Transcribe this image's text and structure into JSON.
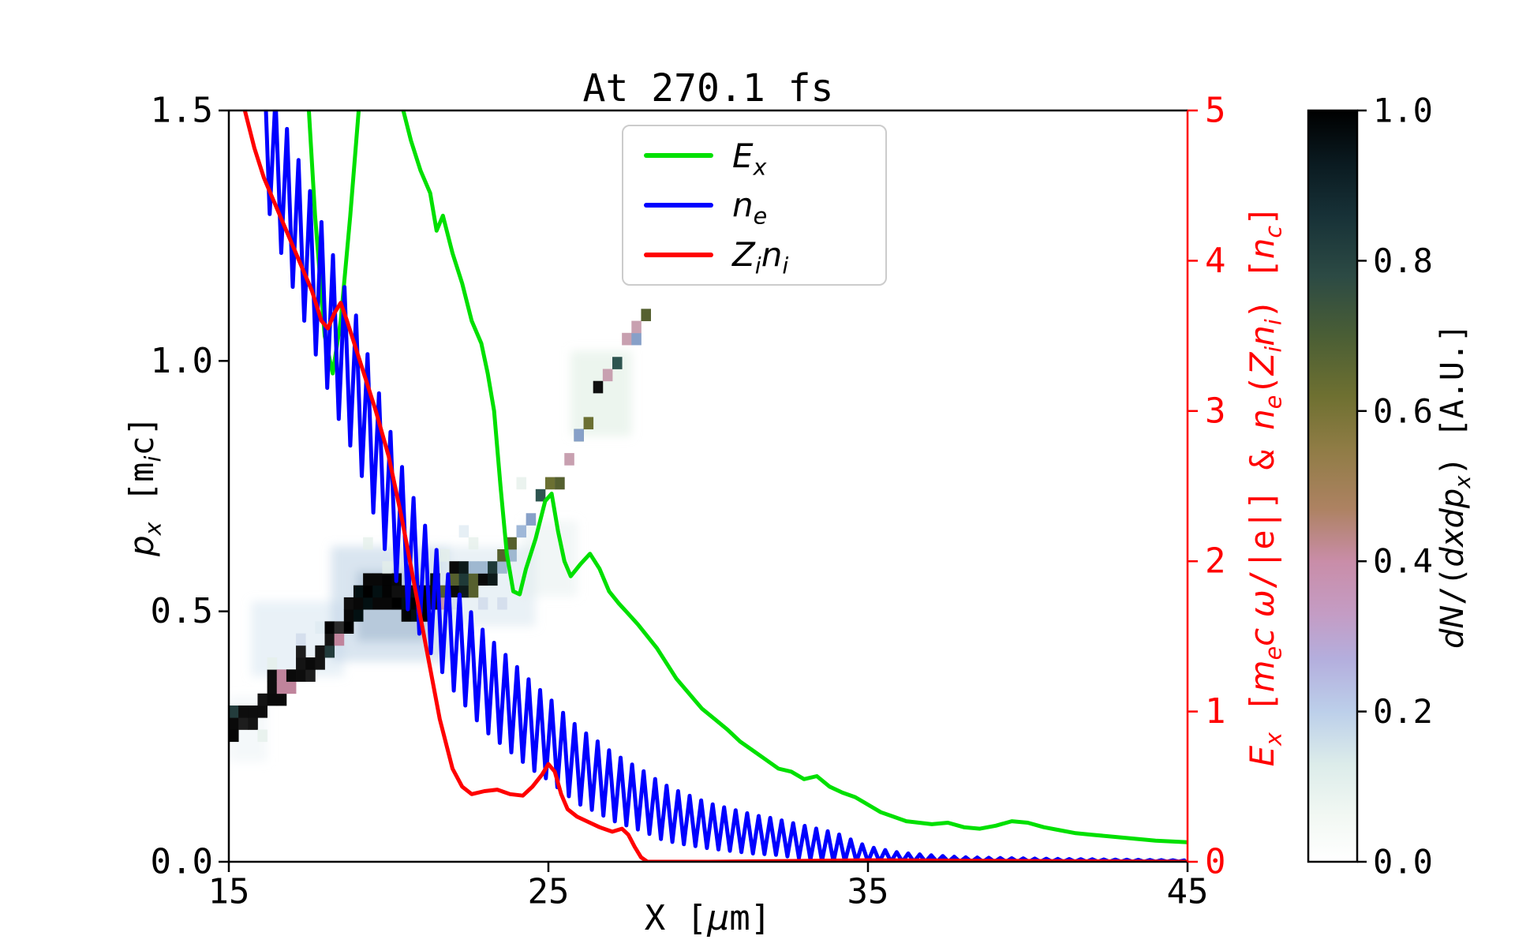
{
  "figure": {
    "title": "At 270.1 fs",
    "xlabel_html": "X [<i>μ</i>m]",
    "ylabel_left_html": "<i>p<sub>x</sub></i> [m<sub><i>i</i></sub>c]",
    "ylabel_right_html": "<i>E<sub>x</sub></i> [<i>m<sub>e</sub>c ω</i>/|e|] &amp; <i>n<sub>e</sub></i>(<i>Z<sub>i</sub>n<sub>i</sub></i>) [<i>n<sub>c</sub></i>]",
    "colorbar_label_html": "<i>dN</i>/(<i>dxdp<sub>x</sub></i>) [A.U.]"
  },
  "legend": {
    "items": [
      {
        "label_html": "<i>E<sub>x</sub></i>",
        "color": "#00e000"
      },
      {
        "label_html": "<i>n<sub>e</sub></i>",
        "color": "#0000ff"
      },
      {
        "label_html": "<i>Z<sub>i</sub>n<sub>i</sub></i>",
        "color": "#ff0000"
      }
    ]
  },
  "axes": {
    "right_axis_color": "#ff0000",
    "spine_color": "#000000",
    "x_ticks": [
      {
        "v": 15,
        "label": "15"
      },
      {
        "v": 25,
        "label": "25"
      },
      {
        "v": 35,
        "label": "35"
      },
      {
        "v": 45,
        "label": "45"
      }
    ],
    "yleft_ticks": [
      {
        "v": 0.0,
        "label": "0.0"
      },
      {
        "v": 0.5,
        "label": "0.5"
      },
      {
        "v": 1.0,
        "label": "1.0"
      },
      {
        "v": 1.5,
        "label": "1.5"
      }
    ],
    "yright_ticks": [
      {
        "v": 0,
        "label": "0"
      },
      {
        "v": 1,
        "label": "1"
      },
      {
        "v": 2,
        "label": "2"
      },
      {
        "v": 3,
        "label": "3"
      },
      {
        "v": 4,
        "label": "4"
      },
      {
        "v": 5,
        "label": "5"
      }
    ],
    "colorbar_ticks": [
      {
        "v": 0.0,
        "label": "0.0"
      },
      {
        "v": 0.2,
        "label": "0.2"
      },
      {
        "v": 0.4,
        "label": "0.4"
      },
      {
        "v": 0.6,
        "label": "0.6"
      },
      {
        "v": 0.8,
        "label": "0.8"
      },
      {
        "v": 1.0,
        "label": "1.0"
      }
    ]
  },
  "chart_data": {
    "type": "line",
    "title": "At 270.1 fs",
    "xlabel": "X [μm]",
    "ylabel_left": "p_x [m_i c]",
    "ylabel_right": "E_x [m_e c ω/|e|] & n_e(Z_i n_i) [n_c]",
    "xlim": [
      15,
      45
    ],
    "ylim_left": [
      0,
      1.5
    ],
    "ylim_right": [
      0,
      5
    ],
    "legend_position": "upper center",
    "grid": false,
    "series": [
      {
        "name": "E_x",
        "axis": "right",
        "color": "#00e000",
        "width": 5,
        "points": [
          [
            17.45,
            5.2
          ],
          [
            17.7,
            4.3
          ],
          [
            18.0,
            3.5
          ],
          [
            18.25,
            3.25
          ],
          [
            18.5,
            3.6
          ],
          [
            18.8,
            4.3
          ],
          [
            19.1,
            5.1
          ],
          [
            19.3,
            5.5
          ],
          [
            20.1,
            5.5
          ],
          [
            20.4,
            5.05
          ],
          [
            20.7,
            4.8
          ],
          [
            21.0,
            4.6
          ],
          [
            21.3,
            4.45
          ],
          [
            21.5,
            4.2
          ],
          [
            21.7,
            4.3
          ],
          [
            22.0,
            4.05
          ],
          [
            22.3,
            3.85
          ],
          [
            22.6,
            3.6
          ],
          [
            22.9,
            3.45
          ],
          [
            23.1,
            3.25
          ],
          [
            23.3,
            3.0
          ],
          [
            23.5,
            2.5
          ],
          [
            23.7,
            2.05
          ],
          [
            23.9,
            1.8
          ],
          [
            24.1,
            1.78
          ],
          [
            24.3,
            1.95
          ],
          [
            24.6,
            2.15
          ],
          [
            24.9,
            2.4
          ],
          [
            25.1,
            2.45
          ],
          [
            25.3,
            2.2
          ],
          [
            25.5,
            2.0
          ],
          [
            25.7,
            1.9
          ],
          [
            26.0,
            1.98
          ],
          [
            26.3,
            2.05
          ],
          [
            26.6,
            1.95
          ],
          [
            26.9,
            1.8
          ],
          [
            27.2,
            1.72
          ],
          [
            27.5,
            1.65
          ],
          [
            27.8,
            1.58
          ],
          [
            28.1,
            1.5
          ],
          [
            28.4,
            1.42
          ],
          [
            28.7,
            1.32
          ],
          [
            29.0,
            1.22
          ],
          [
            29.4,
            1.12
          ],
          [
            29.8,
            1.02
          ],
          [
            30.2,
            0.95
          ],
          [
            30.6,
            0.88
          ],
          [
            31.0,
            0.8
          ],
          [
            31.4,
            0.74
          ],
          [
            31.8,
            0.68
          ],
          [
            32.2,
            0.62
          ],
          [
            32.6,
            0.6
          ],
          [
            33.0,
            0.55
          ],
          [
            33.4,
            0.57
          ],
          [
            33.8,
            0.5
          ],
          [
            34.2,
            0.46
          ],
          [
            34.6,
            0.43
          ],
          [
            35.0,
            0.38
          ],
          [
            35.4,
            0.33
          ],
          [
            35.8,
            0.3
          ],
          [
            36.2,
            0.27
          ],
          [
            36.6,
            0.26
          ],
          [
            37.0,
            0.25
          ],
          [
            37.5,
            0.26
          ],
          [
            38.0,
            0.23
          ],
          [
            38.5,
            0.22
          ],
          [
            39.0,
            0.24
          ],
          [
            39.5,
            0.27
          ],
          [
            40.0,
            0.26
          ],
          [
            40.5,
            0.23
          ],
          [
            41.0,
            0.21
          ],
          [
            41.5,
            0.19
          ],
          [
            42.0,
            0.18
          ],
          [
            42.5,
            0.17
          ],
          [
            43.0,
            0.16
          ],
          [
            43.5,
            0.15
          ],
          [
            44.0,
            0.14
          ],
          [
            44.5,
            0.135
          ],
          [
            45.0,
            0.13
          ]
        ]
      },
      {
        "name": "n_e",
        "axis": "right",
        "color": "#0000ff",
        "width": 5,
        "synthesis": "zigzag",
        "x_start": 16.1,
        "x_end": 45,
        "period": 0.36,
        "center": [
          [
            16.1,
            4.9
          ],
          [
            16.5,
            4.6
          ],
          [
            17.0,
            4.3
          ],
          [
            17.5,
            4.0
          ],
          [
            18.0,
            3.7
          ],
          [
            18.5,
            3.4
          ],
          [
            19.0,
            3.15
          ],
          [
            19.5,
            2.8
          ],
          [
            20.0,
            2.45
          ],
          [
            20.5,
            2.15
          ],
          [
            21.0,
            1.9
          ],
          [
            21.5,
            1.7
          ],
          [
            22.0,
            1.5
          ],
          [
            22.5,
            1.35
          ],
          [
            23.0,
            1.2
          ],
          [
            23.5,
            1.1
          ],
          [
            24.0,
            1.0
          ],
          [
            24.5,
            0.9
          ],
          [
            25.0,
            0.82
          ],
          [
            25.5,
            0.72
          ],
          [
            26.0,
            0.63
          ],
          [
            26.5,
            0.57
          ],
          [
            27.0,
            0.5
          ],
          [
            27.5,
            0.45
          ],
          [
            28.0,
            0.4
          ],
          [
            28.5,
            0.34
          ],
          [
            29.0,
            0.3
          ],
          [
            29.5,
            0.27
          ],
          [
            30.0,
            0.24
          ],
          [
            30.5,
            0.22
          ],
          [
            31.0,
            0.2
          ],
          [
            31.5,
            0.18
          ],
          [
            32.0,
            0.17
          ],
          [
            32.5,
            0.15
          ],
          [
            33.0,
            0.13
          ],
          [
            33.5,
            0.11
          ],
          [
            34.0,
            0.09
          ],
          [
            34.5,
            0.07
          ],
          [
            35.0,
            0.05
          ],
          [
            35.5,
            0.04
          ],
          [
            36.0,
            0.03
          ],
          [
            37.0,
            0.02
          ],
          [
            38.0,
            0.015
          ],
          [
            40.0,
            0.01
          ],
          [
            42.0,
            0.008
          ],
          [
            45.0,
            0.005
          ]
        ],
        "amplitude": [
          [
            16.1,
            0.45
          ],
          [
            18.0,
            0.5
          ],
          [
            20.0,
            0.45
          ],
          [
            22.0,
            0.35
          ],
          [
            24.0,
            0.3
          ],
          [
            26.0,
            0.25
          ],
          [
            28.0,
            0.2
          ],
          [
            30.0,
            0.15
          ],
          [
            32.0,
            0.12
          ],
          [
            34.0,
            0.1
          ],
          [
            35.0,
            0.05
          ],
          [
            36.0,
            0.03
          ],
          [
            38.0,
            0.015
          ],
          [
            45.0,
            0.004
          ]
        ]
      },
      {
        "name": "Z_i n_i",
        "axis": "right",
        "color": "#ff0000",
        "width": 5,
        "points": [
          [
            15.2,
            5.4
          ],
          [
            15.5,
            5.0
          ],
          [
            15.8,
            4.75
          ],
          [
            16.1,
            4.55
          ],
          [
            16.4,
            4.4
          ],
          [
            16.8,
            4.2
          ],
          [
            17.2,
            4.0
          ],
          [
            17.6,
            3.8
          ],
          [
            17.9,
            3.6
          ],
          [
            18.1,
            3.55
          ],
          [
            18.3,
            3.65
          ],
          [
            18.5,
            3.72
          ],
          [
            18.7,
            3.6
          ],
          [
            19.0,
            3.4
          ],
          [
            19.3,
            3.2
          ],
          [
            19.6,
            3.0
          ],
          [
            20.0,
            2.7
          ],
          [
            20.4,
            2.3
          ],
          [
            20.8,
            1.85
          ],
          [
            21.2,
            1.4
          ],
          [
            21.6,
            0.95
          ],
          [
            22.0,
            0.62
          ],
          [
            22.3,
            0.5
          ],
          [
            22.6,
            0.45
          ],
          [
            23.0,
            0.47
          ],
          [
            23.4,
            0.48
          ],
          [
            23.8,
            0.45
          ],
          [
            24.2,
            0.44
          ],
          [
            24.5,
            0.5
          ],
          [
            24.8,
            0.58
          ],
          [
            25.0,
            0.65
          ],
          [
            25.2,
            0.6
          ],
          [
            25.4,
            0.45
          ],
          [
            25.6,
            0.35
          ],
          [
            25.9,
            0.3
          ],
          [
            26.2,
            0.27
          ],
          [
            26.6,
            0.23
          ],
          [
            27.0,
            0.2
          ],
          [
            27.3,
            0.22
          ],
          [
            27.5,
            0.18
          ],
          [
            27.7,
            0.1
          ],
          [
            27.9,
            0.03
          ],
          [
            28.1,
            0.0
          ],
          [
            30.0,
            0.0
          ],
          [
            35.0,
            0.01
          ],
          [
            40.0,
            0.005
          ],
          [
            45.0,
            0.0
          ]
        ]
      }
    ],
    "heatmap": {
      "description": "dN/(dx dp_x) electron phase-space density band, left axis units",
      "x0": 15.0,
      "x1": 28.8,
      "cell_w": 0.3,
      "cell_h": 0.024,
      "seed": 7,
      "band": [
        [
          15,
          0.26
        ],
        [
          15.5,
          0.28
        ],
        [
          16,
          0.31
        ],
        [
          16.5,
          0.335
        ],
        [
          17,
          0.36
        ],
        [
          17.5,
          0.39
        ],
        [
          18,
          0.43
        ],
        [
          18.5,
          0.46
        ],
        [
          19,
          0.5
        ],
        [
          19.5,
          0.53
        ],
        [
          20,
          0.53
        ],
        [
          20.5,
          0.51
        ],
        [
          21,
          0.5
        ],
        [
          21.5,
          0.52
        ],
        [
          22,
          0.54
        ],
        [
          22.5,
          0.55
        ],
        [
          23,
          0.57
        ],
        [
          23.5,
          0.6
        ],
        [
          24,
          0.64
        ],
        [
          24.5,
          0.68
        ],
        [
          25,
          0.73
        ],
        [
          25.5,
          0.78
        ],
        [
          26,
          0.84
        ],
        [
          26.5,
          0.9
        ],
        [
          27,
          0.97
        ],
        [
          27.5,
          1.03
        ],
        [
          28,
          1.09
        ],
        [
          28.5,
          1.15
        ],
        [
          28.9,
          1.19
        ]
      ],
      "regions": [
        {
          "x_max": 18.5,
          "thickness": 2,
          "extra_prob": 0.35,
          "palette": "A",
          "jitter": false,
          "skip_prob": 0
        },
        {
          "x_max": 21.6,
          "thickness": 3,
          "extra_prob": 0.5,
          "palette": "B",
          "jitter": false,
          "skip_prob": 0
        },
        {
          "x_max": 24.0,
          "thickness": 2,
          "extra_prob": 0.3,
          "palette": "C",
          "jitter": false,
          "skip_prob": 0
        },
        {
          "x_max": 29.0,
          "thickness": 1,
          "extra_prob": 0.35,
          "palette": "D",
          "jitter": true,
          "skip_prob": 0.12
        }
      ],
      "palettes": {
        "A": [
          "#050505",
          "#0d0d0d",
          "#141414",
          "#1d1d1d",
          "#c0849c",
          "#233c3c",
          "#2b2b2b",
          "#0a0a0a"
        ],
        "B": [
          "#000000",
          "#030303",
          "#080808",
          "#0f0f0f",
          "#031012"
        ],
        "C": [
          "#0d1a1a",
          "#1f3a38",
          "#56602e",
          "#0a0a0a",
          "#9fb8d0",
          "#c393a8"
        ],
        "D": [
          "#b5879e",
          "#c79aae",
          "#6b7032",
          "#2e5550",
          "#101010",
          "#9fb8d8",
          "#87a0c8",
          "#556030",
          "#1d3a3a",
          "#c8a0b0"
        ]
      },
      "speckle_colors": [
        "#dde9f2",
        "#cdd8ea",
        "#e4efe9"
      ],
      "halos": [
        {
          "x0": 15.7,
          "x1": 18.6,
          "p0": 0.37,
          "p1": 0.52,
          "color": "#cfe0ee",
          "alpha": 0.45
        },
        {
          "x0": 18.2,
          "x1": 21.9,
          "p0": 0.4,
          "p1": 0.63,
          "color": "#b9cfe4",
          "alpha": 0.55
        },
        {
          "x0": 19.0,
          "x1": 21.2,
          "p0": 0.44,
          "p1": 0.58,
          "color": "#8fa9c4",
          "alpha": 0.45
        },
        {
          "x0": 21.6,
          "x1": 24.6,
          "p0": 0.47,
          "p1": 0.63,
          "color": "#d4e4ee",
          "alpha": 0.5
        },
        {
          "x0": 24.2,
          "x1": 25.9,
          "p0": 0.53,
          "p1": 0.68,
          "color": "#dfeceb",
          "alpha": 0.45
        },
        {
          "x0": 25.7,
          "x1": 27.6,
          "p0": 0.85,
          "p1": 1.02,
          "color": "#d9ecde",
          "alpha": 0.5
        },
        {
          "x0": 15.0,
          "x1": 16.2,
          "p0": 0.2,
          "p1": 0.33,
          "color": "#e3edf3",
          "alpha": 0.4
        }
      ]
    },
    "colorbar": {
      "label": "dN/(dxdp_x) [A.U.]",
      "range": [
        0.0,
        1.0
      ],
      "stops": [
        [
          0,
          "#ffffff"
        ],
        [
          0.06,
          "#f2f8f3"
        ],
        [
          0.13,
          "#dcecea"
        ],
        [
          0.2,
          "#bccfea"
        ],
        [
          0.27,
          "#b4aedd"
        ],
        [
          0.33,
          "#c49cc4"
        ],
        [
          0.4,
          "#c98da8"
        ],
        [
          0.47,
          "#ad8262"
        ],
        [
          0.55,
          "#8f7c45"
        ],
        [
          0.62,
          "#6e7031"
        ],
        [
          0.7,
          "#4a5e35"
        ],
        [
          0.78,
          "#2c4a44"
        ],
        [
          0.86,
          "#173137"
        ],
        [
          0.93,
          "#0a1a20"
        ],
        [
          1,
          "#000000"
        ]
      ]
    }
  }
}
